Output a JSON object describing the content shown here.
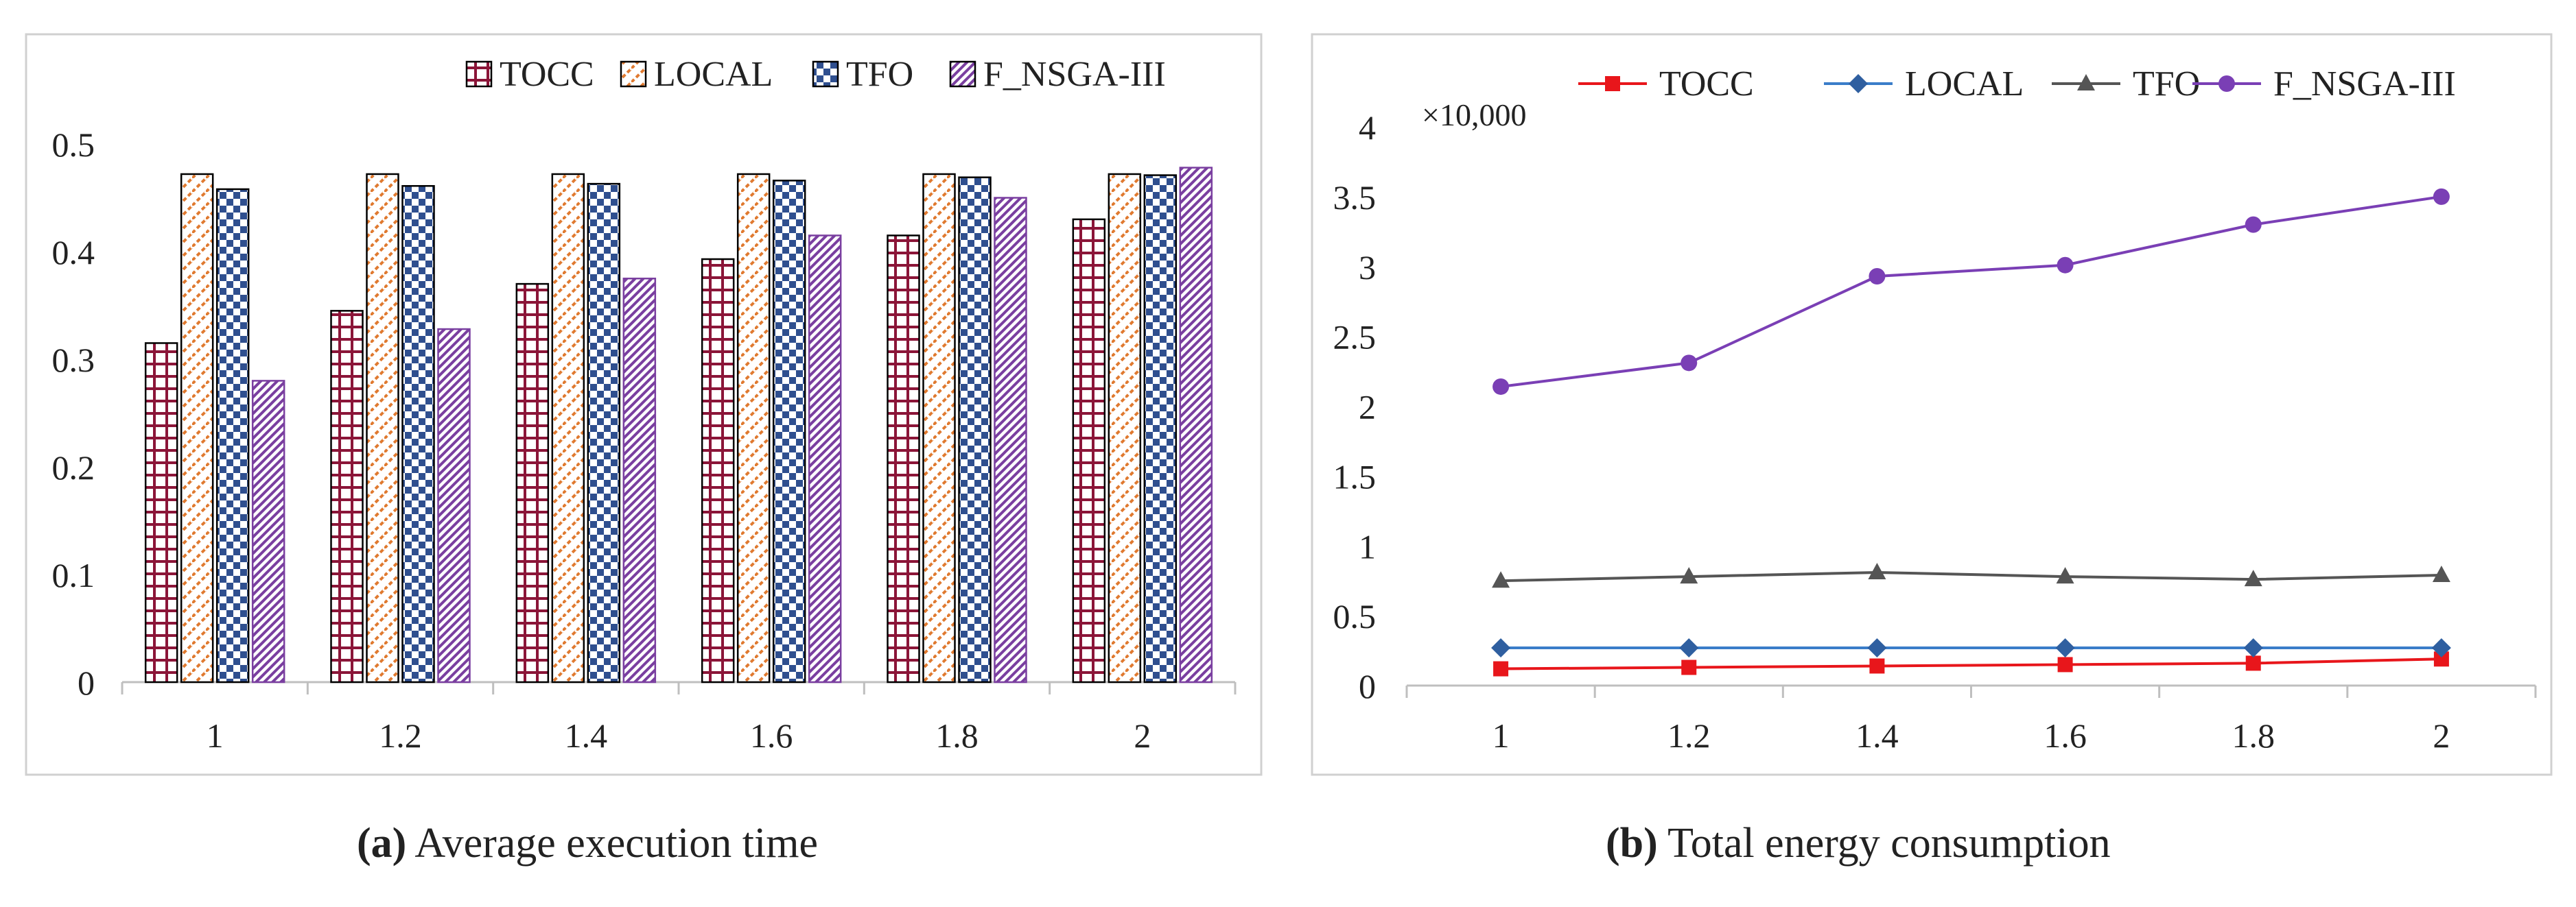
{
  "colors": {
    "TOCC": "#8b1538",
    "LOCAL": "#e07a30",
    "TFO": "#2f4f8f",
    "F_NSGA-III": "#7a3fa0",
    "frame": "#d0d0d0",
    "axis": "#bfbfbf",
    "text": "#222222"
  },
  "captions": {
    "a": {
      "label": "(a)",
      "text": "Average execution time"
    },
    "b": {
      "label": "(b)",
      "text": "Total energy consumption"
    }
  },
  "chart_data": [
    {
      "type": "bar",
      "title": "",
      "xlabel": "",
      "ylabel": "",
      "ylim": [
        0,
        0.5
      ],
      "yticks": [
        0,
        0.1,
        0.2,
        0.3,
        0.4,
        0.5
      ],
      "ytick_labels": [
        "0",
        "0.1",
        "0.2",
        "0.3",
        "0.4",
        "0.5"
      ],
      "categories": [
        "1",
        "1.2",
        "1.4",
        "1.6",
        "1.8",
        "2"
      ],
      "legend_position": "top-right",
      "grid": false,
      "series": [
        {
          "name": "TOCC",
          "values": [
            0.315,
            0.345,
            0.37,
            0.393,
            0.415,
            0.43
          ]
        },
        {
          "name": "LOCAL",
          "values": [
            0.472,
            0.472,
            0.472,
            0.472,
            0.472,
            0.472
          ]
        },
        {
          "name": "TFO",
          "values": [
            0.458,
            0.461,
            0.463,
            0.466,
            0.469,
            0.471
          ]
        },
        {
          "name": "F_NSGA-III",
          "values": [
            0.28,
            0.328,
            0.375,
            0.415,
            0.45,
            0.478
          ]
        }
      ]
    },
    {
      "type": "line",
      "title": "",
      "xlabel": "",
      "ylabel": "",
      "multiplier_label": "×10,000",
      "ylim": [
        0,
        4
      ],
      "yticks": [
        0,
        0.5,
        1,
        1.5,
        2,
        2.5,
        3,
        3.5,
        4
      ],
      "ytick_labels": [
        "0",
        "0.5",
        "1",
        "1.5",
        "2",
        "2.5",
        "3",
        "3.5",
        "4"
      ],
      "categories": [
        "1",
        "1.2",
        "1.4",
        "1.6",
        "1.8",
        "2"
      ],
      "legend_position": "top",
      "grid": false,
      "series": [
        {
          "name": "TOCC",
          "marker": "square",
          "values": [
            0.12,
            0.13,
            0.14,
            0.15,
            0.16,
            0.19
          ]
        },
        {
          "name": "LOCAL",
          "marker": "diamond",
          "values": [
            0.27,
            0.27,
            0.27,
            0.27,
            0.27,
            0.27
          ]
        },
        {
          "name": "TFO",
          "marker": "triangle",
          "values": [
            0.75,
            0.78,
            0.81,
            0.78,
            0.76,
            0.79
          ]
        },
        {
          "name": "F_NSGA-III",
          "marker": "circle",
          "values": [
            2.14,
            2.31,
            2.93,
            3.01,
            3.3,
            3.5
          ]
        }
      ]
    }
  ]
}
